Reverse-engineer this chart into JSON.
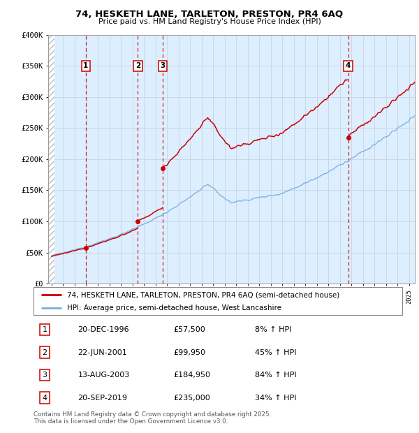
{
  "title1": "74, HESKETH LANE, TARLETON, PRESTON, PR4 6AQ",
  "title2": "Price paid vs. HM Land Registry's House Price Index (HPI)",
  "ylim": [
    0,
    400000
  ],
  "xlim_start": 1993.7,
  "xlim_end": 2025.5,
  "yticks": [
    0,
    50000,
    100000,
    150000,
    200000,
    250000,
    300000,
    350000,
    400000
  ],
  "ytick_labels": [
    "£0",
    "£50K",
    "£100K",
    "£150K",
    "£200K",
    "£250K",
    "£300K",
    "£350K",
    "£400K"
  ],
  "transactions": [
    {
      "num": 1,
      "date_x": 1996.96,
      "price": 57500,
      "label": "1"
    },
    {
      "num": 2,
      "date_x": 2001.47,
      "price": 99950,
      "label": "2"
    },
    {
      "num": 3,
      "date_x": 2003.62,
      "price": 184950,
      "label": "3"
    },
    {
      "num": 4,
      "date_x": 2019.72,
      "price": 235000,
      "label": "4"
    }
  ],
  "red_line_color": "#cc0000",
  "blue_line_color": "#7aaddc",
  "grid_color": "#c8d8e8",
  "bg_color": "#ddeeff",
  "legend_items": [
    "74, HESKETH LANE, TARLETON, PRESTON, PR4 6AQ (semi-detached house)",
    "HPI: Average price, semi-detached house, West Lancashire"
  ],
  "table_rows": [
    [
      "1",
      "20-DEC-1996",
      "£57,500",
      "8% ↑ HPI"
    ],
    [
      "2",
      "22-JUN-2001",
      "£99,950",
      "45% ↑ HPI"
    ],
    [
      "3",
      "13-AUG-2003",
      "£184,950",
      "84% ↑ HPI"
    ],
    [
      "4",
      "20-SEP-2019",
      "£235,000",
      "34% ↑ HPI"
    ]
  ],
  "footer": "Contains HM Land Registry data © Crown copyright and database right 2025.\nThis data is licensed under the Open Government Licence v3.0."
}
